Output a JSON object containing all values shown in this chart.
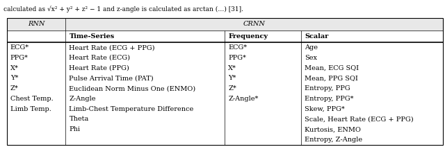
{
  "title_row1": [
    "RNN",
    "CRNN",
    "",
    ""
  ],
  "title_row2": [
    "",
    "Time-Series",
    "Frequency",
    "Scalar"
  ],
  "rnn_col": [
    "ECG*",
    "PPG*",
    "X*",
    "Y*",
    "Z*",
    "Chest Temp.",
    "Limb Temp.",
    "",
    "",
    ""
  ],
  "ts_col": [
    "Heart Rate (ECG + PPG)",
    "Heart Rate (ECG)",
    "Heart Rate (PPG)",
    "Pulse Arrival Time (PAT)",
    "Euclidean Norm Minus One (ENMO)",
    "Z-Angle",
    "Limb-Chest Temperature Difference",
    "Theta",
    "Phi",
    ""
  ],
  "freq_col": [
    "ECG*",
    "PPG*",
    "X*",
    "Y*",
    "Z*",
    "Z-Angle*",
    "",
    "",
    "",
    ""
  ],
  "scalar_col": [
    "Age",
    "Sex",
    "Mean, ECG SQI",
    "Mean, PPG SQI",
    "Entropy, PPG",
    "Entropy, PPG*",
    "Skew, PPG*",
    "Scale, Heart Rate (ECG + PPG)",
    "Kurtosis, ENMO",
    "Entropy, Z-Angle"
  ],
  "figsize": [
    6.4,
    2.12
  ],
  "dpi": 100,
  "font_size": 7.0,
  "header_font_size": 7.0,
  "bg_header": "#e8e8e8",
  "bg_white": "#ffffff",
  "border_color": "#000000",
  "top_text": "calculated as √x² + y² + z² − 1 and z-angle is calculated as arctan (…) [31].",
  "n_data_rows": 10
}
